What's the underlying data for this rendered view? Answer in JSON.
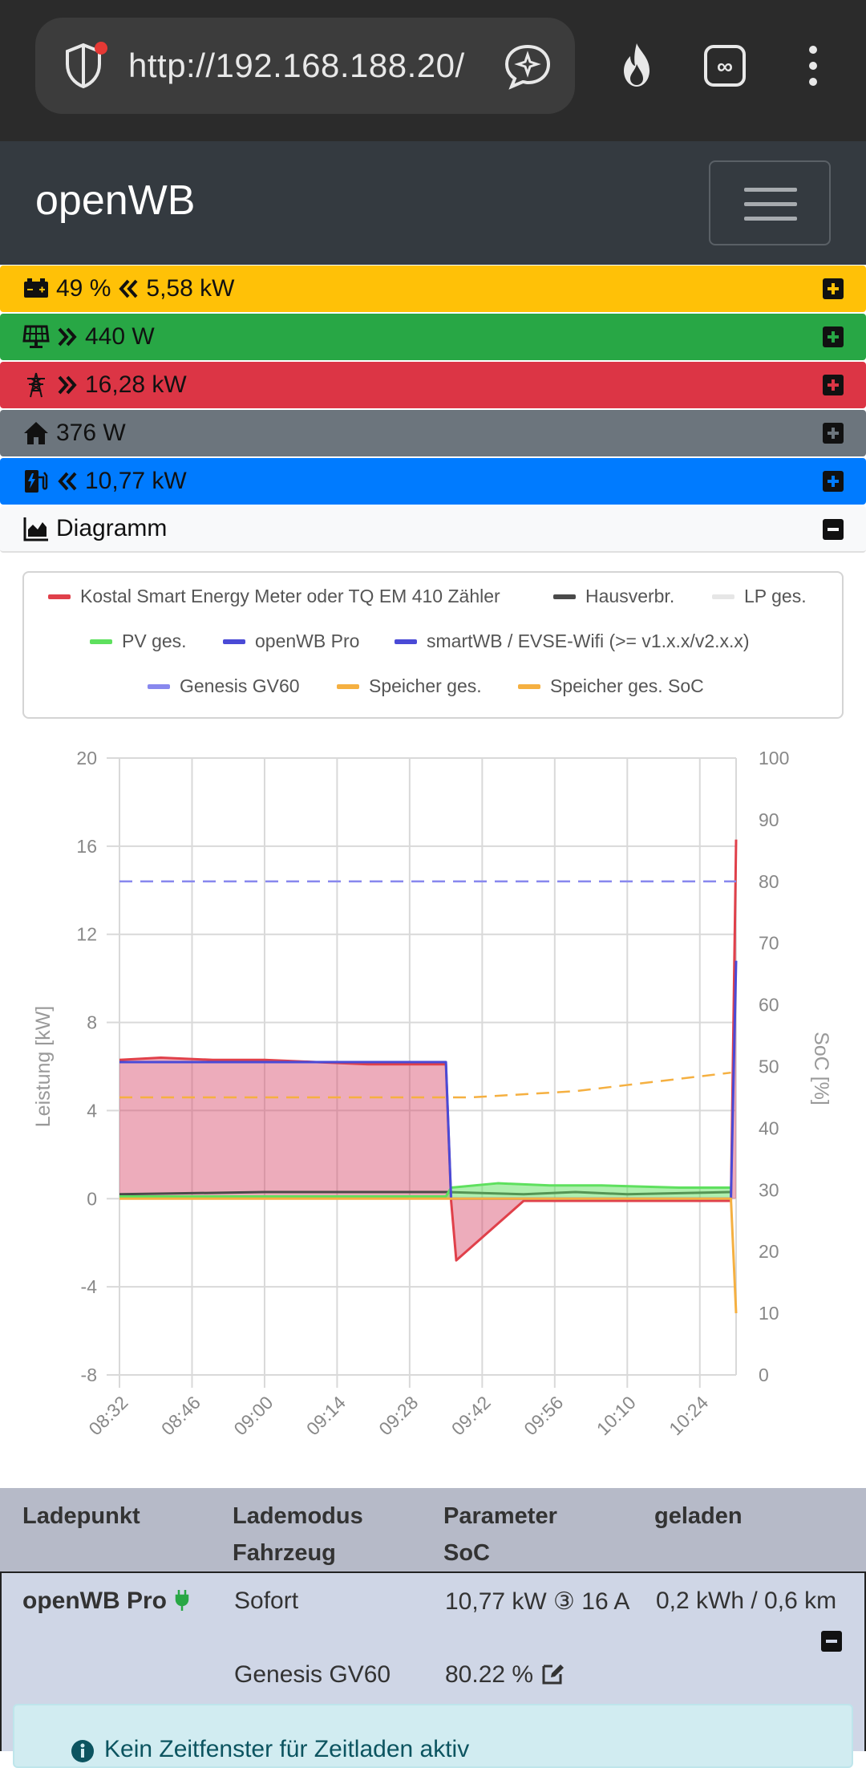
{
  "browser": {
    "url": "http://192.168.188.20/"
  },
  "navbar": {
    "brand": "openWB"
  },
  "status": {
    "battery": {
      "soc": "49 %",
      "power": "5,58 kW",
      "color": "#ffc107"
    },
    "pv": {
      "power": "440 W",
      "color": "#28a745"
    },
    "grid": {
      "power": "16,28 kW",
      "color": "#dc3545"
    },
    "house": {
      "power": "376 W",
      "color": "#6c757d"
    },
    "charge": {
      "power": "10,77 kW",
      "color": "#007bff"
    },
    "diagram": {
      "label": "Diagramm"
    }
  },
  "chart_data": {
    "type": "line",
    "legend": [
      {
        "name": "Kostal Smart Energy Meter oder TQ EM 410 Zähler",
        "color": "#e0404a"
      },
      {
        "name": "Hausverbr.",
        "color": "#4a4a4a"
      },
      {
        "name": "LP ges.",
        "color": "#e6e6e6"
      },
      {
        "name": "PV ges.",
        "color": "#5ee05e"
      },
      {
        "name": "openWB Pro",
        "color": "#4a4ad6"
      },
      {
        "name": "smartWB / EVSE-Wifi (>= v1.x.x/v2.x.x)",
        "color": "#4a4ad6"
      },
      {
        "name": "Genesis GV60",
        "color": "#8888ee"
      },
      {
        "name": "Speicher ges.",
        "color": "#f5b041"
      },
      {
        "name": "Speicher ges. SoC",
        "color": "#f5b041"
      }
    ],
    "ylabel_left": "Leistung [kW]",
    "ylabel_right": "SoC [%]",
    "ylim_left": [
      -8,
      20
    ],
    "ylim_right": [
      0,
      100
    ],
    "yticks_left": [
      "20",
      "16",
      "12",
      "8",
      "4",
      "0",
      "-4",
      "-8"
    ],
    "yticks_right": [
      "100",
      "90",
      "80",
      "70",
      "60",
      "50",
      "40",
      "30",
      "20",
      "10",
      "0"
    ],
    "xticks": [
      "08:32",
      "08:46",
      "09:00",
      "09:14",
      "09:28",
      "09:42",
      "09:56",
      "10:10",
      "10:24"
    ],
    "series": [
      {
        "name": "Kostal Smart Energy Meter oder TQ EM 410 Zähler",
        "x": [
          "08:32",
          "08:40",
          "08:50",
          "09:00",
          "09:10",
          "09:20",
          "09:35",
          "09:36",
          "09:37",
          "09:50",
          "10:10",
          "10:30",
          "10:31"
        ],
        "y": [
          6.3,
          6.4,
          6.3,
          6.3,
          6.2,
          6.1,
          6.1,
          -0.1,
          -2.8,
          -0.1,
          -0.1,
          -0.1,
          16.3
        ]
      },
      {
        "name": "Hausverbr.",
        "x": [
          "08:32",
          "09:00",
          "09:35",
          "09:50",
          "10:00",
          "10:10",
          "10:30"
        ],
        "y": [
          0.2,
          0.3,
          0.3,
          0.2,
          0.3,
          0.2,
          0.3
        ]
      },
      {
        "name": "PV ges.",
        "x": [
          "08:32",
          "09:35",
          "09:36",
          "09:45",
          "09:55",
          "10:05",
          "10:20",
          "10:30"
        ],
        "y": [
          0.1,
          0.1,
          0.5,
          0.7,
          0.6,
          0.6,
          0.5,
          0.5
        ]
      },
      {
        "name": "openWB Pro",
        "x": [
          "08:32",
          "09:35",
          "09:36",
          "10:30",
          "10:31"
        ],
        "y": [
          6.2,
          6.2,
          0,
          0,
          10.8
        ]
      },
      {
        "name": "Genesis GV60",
        "axis": "right",
        "x": [
          "08:32",
          "10:31"
        ],
        "y": [
          80,
          80
        ]
      },
      {
        "name": "Speicher ges.",
        "x": [
          "08:32",
          "09:55",
          "10:30",
          "10:31"
        ],
        "y": [
          0,
          0,
          0,
          -5.2
        ]
      },
      {
        "name": "Speicher ges. SoC",
        "axis": "right",
        "x": [
          "08:32",
          "09:40",
          "09:50",
          "10:00",
          "10:10",
          "10:20",
          "10:30"
        ],
        "y": [
          45,
          45,
          45.5,
          46,
          47,
          48,
          49
        ]
      }
    ]
  },
  "table": {
    "headers": {
      "ladepunkt": "Ladepunkt",
      "lademodus": "Lademodus",
      "fahrzeug": "Fahrzeug",
      "parameter": "Parameter",
      "soc": "SoC",
      "geladen": "geladen"
    },
    "row": {
      "name": "openWB Pro",
      "mode": "Sofort",
      "param": "10,77 kW ③ 16 A",
      "charged": "0,2 kWh / 0,6 km",
      "vehicle": "Genesis GV60",
      "vehicle_soc": "80.22 %"
    }
  },
  "info": {
    "text": "Kein Zeitfenster für Zeitladen aktiv"
  }
}
